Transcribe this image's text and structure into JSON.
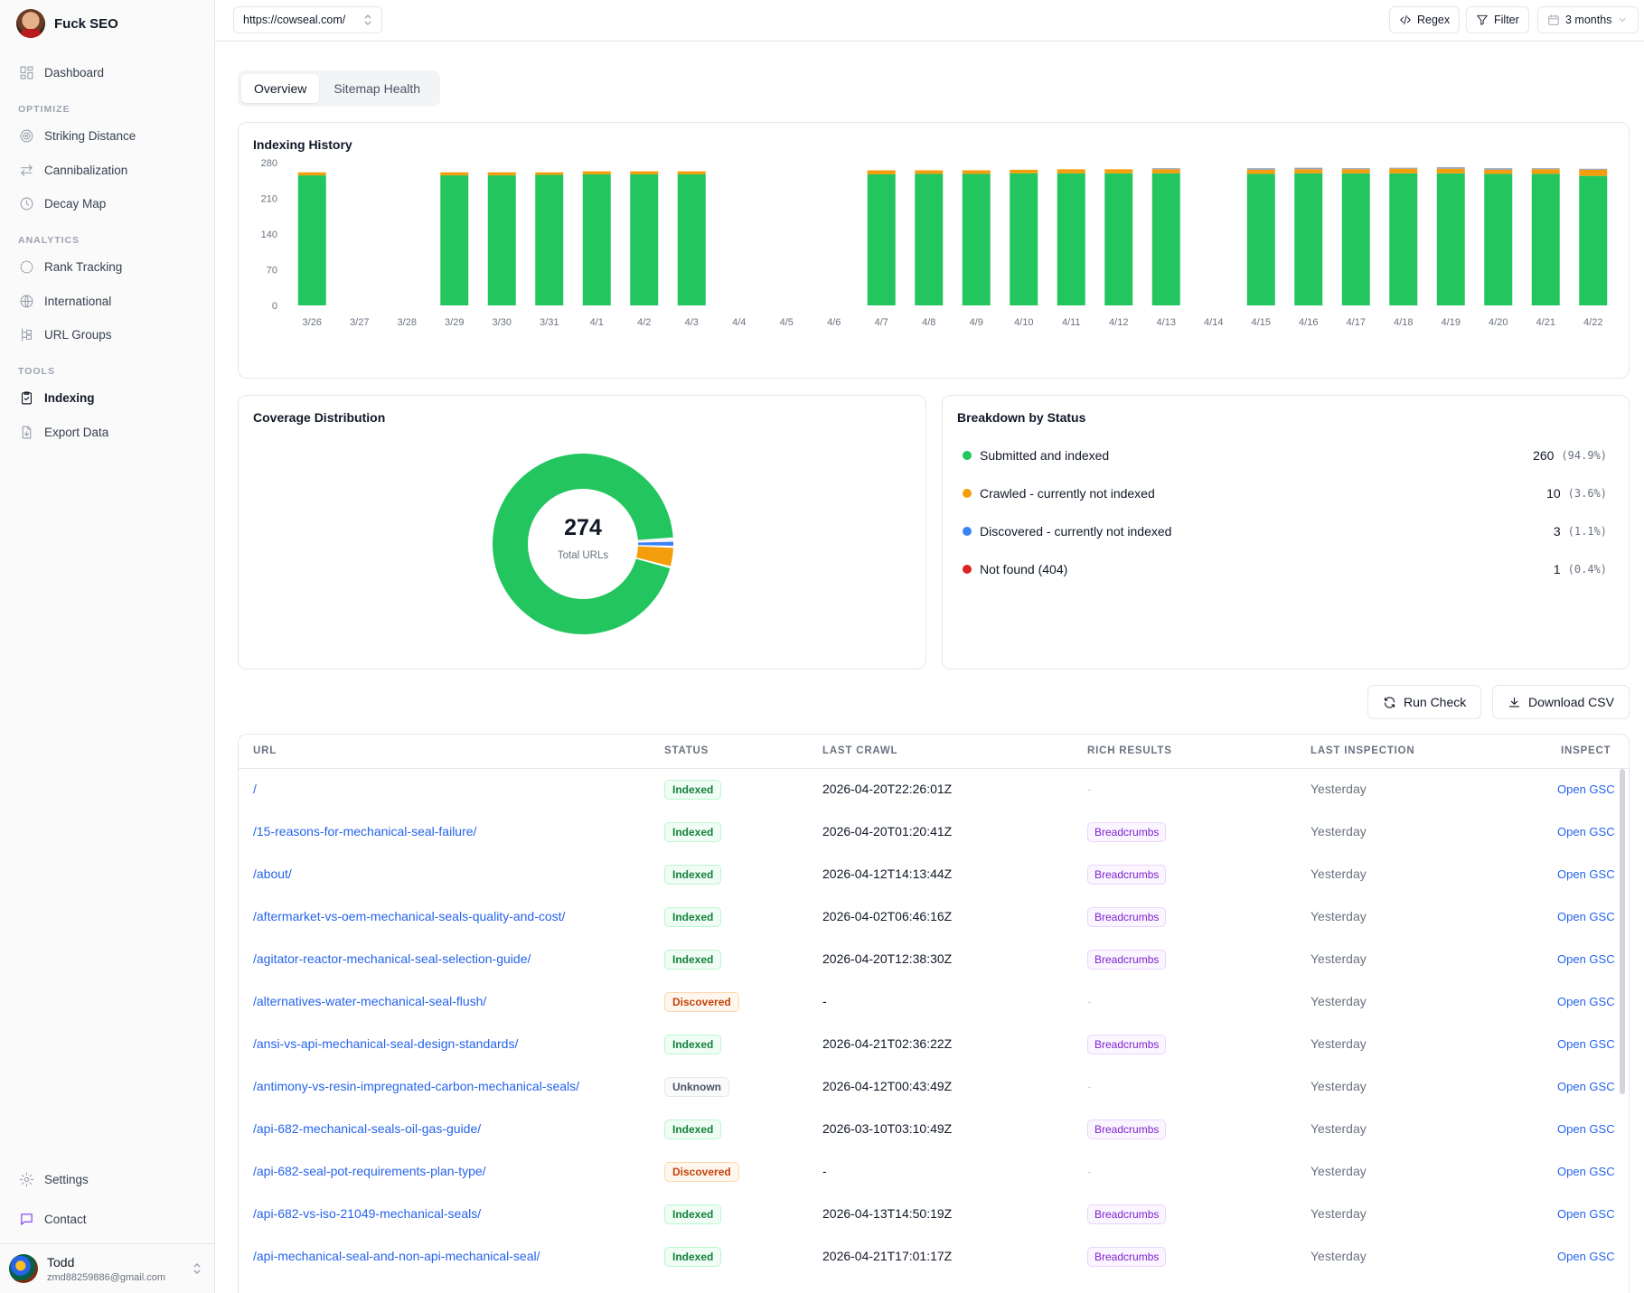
{
  "brand": {
    "name": "Fuck SEO"
  },
  "sidebar": {
    "top": {
      "label": "Dashboard",
      "icon": "dashboard-icon"
    },
    "sections": [
      {
        "title": "OPTIMIZE",
        "items": [
          {
            "label": "Striking Distance",
            "icon": "target-icon"
          },
          {
            "label": "Cannibalization",
            "icon": "arrows-icon"
          },
          {
            "label": "Decay Map",
            "icon": "clock-icon"
          }
        ]
      },
      {
        "title": "ANALYTICS",
        "items": [
          {
            "label": "Rank Tracking",
            "icon": "chart-icon"
          },
          {
            "label": "International",
            "icon": "globe-icon"
          },
          {
            "label": "URL Groups",
            "icon": "group-icon"
          }
        ]
      },
      {
        "title": "TOOLS",
        "items": [
          {
            "label": "Indexing",
            "icon": "clipboard-check-icon",
            "active": true
          },
          {
            "label": "Export Data",
            "icon": "file-export-icon"
          }
        ]
      }
    ],
    "bottom": [
      {
        "label": "Settings",
        "icon": "gear-icon"
      },
      {
        "label": "Contact",
        "icon": "message-icon"
      }
    ],
    "user": {
      "name": "Todd",
      "email": "zmd88259886@gmail.com"
    }
  },
  "topbar": {
    "site": "https://cowseal.com/",
    "regex_label": "Regex",
    "filter_label": "Filter",
    "range_label": "3 months"
  },
  "tabs": [
    {
      "label": "Overview",
      "active": true
    },
    {
      "label": "Sitemap Health",
      "active": false
    }
  ],
  "history": {
    "title": "Indexing History"
  },
  "chart_data": {
    "type": "bar",
    "stacked": true,
    "title": "Indexing History",
    "categories": [
      "3/26",
      "3/27",
      "3/28",
      "3/29",
      "3/30",
      "3/31",
      "4/1",
      "4/2",
      "4/3",
      "4/4",
      "4/5",
      "4/6",
      "4/7",
      "4/8",
      "4/9",
      "4/10",
      "4/11",
      "4/12",
      "4/13",
      "4/14",
      "4/15",
      "4/16",
      "4/17",
      "4/18",
      "4/19",
      "4/20",
      "4/21",
      "4/22"
    ],
    "series": [
      {
        "name": "Submitted and indexed",
        "color": "#22c55e",
        "values": [
          255,
          null,
          null,
          255,
          255,
          256,
          257,
          257,
          257,
          null,
          null,
          null,
          257,
          258,
          258,
          259,
          259,
          259,
          259,
          null,
          258,
          259,
          259,
          259,
          259,
          258,
          258,
          254
        ]
      },
      {
        "name": "Crawled - currently not indexed",
        "color": "#f59e0b",
        "values": [
          6,
          null,
          null,
          6,
          6,
          5,
          6,
          6,
          6,
          null,
          null,
          null,
          8,
          7,
          7,
          7,
          8,
          8,
          8,
          null,
          8,
          8,
          8,
          9,
          9,
          8,
          9,
          12
        ]
      },
      {
        "name": "Discovered - currently not indexed",
        "color": "#94a3b8",
        "values": [
          0,
          null,
          null,
          0,
          0,
          0,
          0,
          0,
          0,
          null,
          null,
          null,
          0,
          0,
          0,
          0,
          0,
          0,
          2,
          null,
          3,
          3,
          2,
          2,
          3,
          3,
          2,
          2
        ]
      }
    ],
    "yticks": [
      0,
      70,
      140,
      210,
      280
    ],
    "ylim": [
      0,
      280
    ],
    "grid": false,
    "legend": "none"
  },
  "coverage": {
    "title": "Coverage Distribution",
    "total": "274",
    "total_label": "Total URLs",
    "slices": [
      {
        "name": "Submitted and indexed",
        "value": 260,
        "color": "#22c55e"
      },
      {
        "name": "Crawled - currently not indexed",
        "value": 10,
        "color": "#f59e0b"
      },
      {
        "name": "Discovered - currently not indexed",
        "value": 3,
        "color": "#3b82f6"
      },
      {
        "name": "Not found (404)",
        "value": 1,
        "color": "#dc2626"
      }
    ]
  },
  "breakdown": {
    "title": "Breakdown by Status",
    "rows": [
      {
        "label": "Submitted and indexed",
        "count": "260",
        "pct": "(94.9%)",
        "color": "#22c55e"
      },
      {
        "label": "Crawled - currently not indexed",
        "count": "10",
        "pct": "(3.6%)",
        "color": "#f59e0b"
      },
      {
        "label": "Discovered - currently not indexed",
        "count": "3",
        "pct": "(1.1%)",
        "color": "#3b82f6"
      },
      {
        "label": "Not found (404)",
        "count": "1",
        "pct": "(0.4%)",
        "color": "#dc2626"
      }
    ]
  },
  "actions": {
    "run_check": "Run Check",
    "download_csv": "Download CSV"
  },
  "table": {
    "headers": {
      "url": "URL",
      "status": "STATUS",
      "last_crawl": "LAST CRAWL",
      "rich_results": "RICH RESULTS",
      "last_inspection": "LAST INSPECTION",
      "inspect": "INSPECT"
    },
    "rows": [
      {
        "url": "/",
        "status": "Indexed",
        "status_type": "indexed",
        "last_crawl": "2026-04-20T22:26:01Z",
        "rich": "-",
        "last_inspection": "Yesterday",
        "inspect": "Open GSC"
      },
      {
        "url": "/15-reasons-for-mechanical-seal-failure/",
        "status": "Indexed",
        "status_type": "indexed",
        "last_crawl": "2026-04-20T01:20:41Z",
        "rich": "Breadcrumbs",
        "last_inspection": "Yesterday",
        "inspect": "Open GSC"
      },
      {
        "url": "/about/",
        "status": "Indexed",
        "status_type": "indexed",
        "last_crawl": "2026-04-12T14:13:44Z",
        "rich": "Breadcrumbs",
        "last_inspection": "Yesterday",
        "inspect": "Open GSC"
      },
      {
        "url": "/aftermarket-vs-oem-mechanical-seals-quality-and-cost/",
        "status": "Indexed",
        "status_type": "indexed",
        "last_crawl": "2026-04-02T06:46:16Z",
        "rich": "Breadcrumbs",
        "last_inspection": "Yesterday",
        "inspect": "Open GSC"
      },
      {
        "url": "/agitator-reactor-mechanical-seal-selection-guide/",
        "status": "Indexed",
        "status_type": "indexed",
        "last_crawl": "2026-04-20T12:38:30Z",
        "rich": "Breadcrumbs",
        "last_inspection": "Yesterday",
        "inspect": "Open GSC"
      },
      {
        "url": "/alternatives-water-mechanical-seal-flush/",
        "status": "Discovered",
        "status_type": "discovered",
        "last_crawl": "-",
        "rich": "-",
        "last_inspection": "Yesterday",
        "inspect": "Open GSC"
      },
      {
        "url": "/ansi-vs-api-mechanical-seal-design-standards/",
        "status": "Indexed",
        "status_type": "indexed",
        "last_crawl": "2026-04-21T02:36:22Z",
        "rich": "Breadcrumbs",
        "last_inspection": "Yesterday",
        "inspect": "Open GSC"
      },
      {
        "url": "/antimony-vs-resin-impregnated-carbon-mechanical-seals/",
        "status": "Unknown",
        "status_type": "unknown",
        "last_crawl": "2026-04-12T00:43:49Z",
        "rich": "-",
        "last_inspection": "Yesterday",
        "inspect": "Open GSC"
      },
      {
        "url": "/api-682-mechanical-seals-oil-gas-guide/",
        "status": "Indexed",
        "status_type": "indexed",
        "last_crawl": "2026-03-10T03:10:49Z",
        "rich": "Breadcrumbs",
        "last_inspection": "Yesterday",
        "inspect": "Open GSC"
      },
      {
        "url": "/api-682-seal-pot-requirements-plan-type/",
        "status": "Discovered",
        "status_type": "discovered",
        "last_crawl": "-",
        "rich": "-",
        "last_inspection": "Yesterday",
        "inspect": "Open GSC"
      },
      {
        "url": "/api-682-vs-iso-21049-mechanical-seals/",
        "status": "Indexed",
        "status_type": "indexed",
        "last_crawl": "2026-04-13T14:50:19Z",
        "rich": "Breadcrumbs",
        "last_inspection": "Yesterday",
        "inspect": "Open GSC"
      },
      {
        "url": "/api-mechanical-seal-and-non-api-mechanical-seal/",
        "status": "Indexed",
        "status_type": "indexed",
        "last_crawl": "2026-04-21T17:01:17Z",
        "rich": "Breadcrumbs",
        "last_inspection": "Yesterday",
        "inspect": "Open GSC"
      }
    ]
  }
}
